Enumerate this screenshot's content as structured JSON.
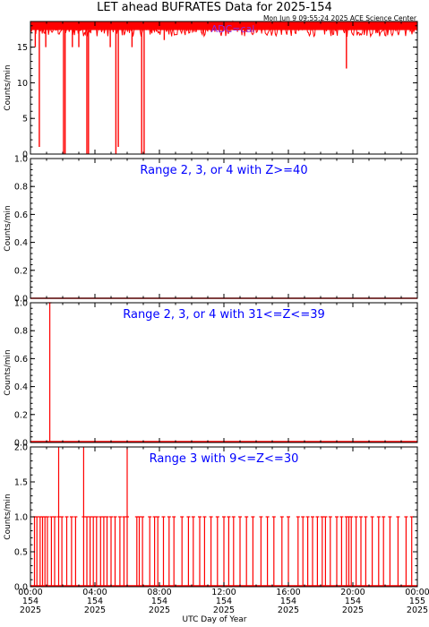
{
  "page": {
    "title": "LET ahead BUFRATES Data for 2025-154",
    "subtitle": "Mon Jun  9 09:55:24 2025 ACE Science Center",
    "xlabel": "UTC Day of Year"
  },
  "colors": {
    "data": "#ff0000",
    "panel_title": "#0000ff",
    "annotation": "#8a2be2",
    "axes": "#000000"
  },
  "chart_data": [
    {
      "type": "line",
      "title": "",
      "annotation": "ADC=cal",
      "xlabel": "",
      "ylabel": "Counts/min",
      "xlim": [
        0,
        24
      ],
      "ylim": [
        0,
        18.6
      ],
      "yticks": [
        0,
        5,
        10,
        15
      ],
      "ytick_labels": [
        "0",
        "5",
        "10",
        "15"
      ],
      "baseline": 18.0,
      "noise_band": [
        16.5,
        18.6
      ],
      "dips": [
        [
          0.3,
          15
        ],
        [
          0.55,
          1
        ],
        [
          2.05,
          0
        ],
        [
          2.15,
          0
        ],
        [
          3.5,
          0
        ],
        [
          3.6,
          0
        ],
        [
          5.3,
          0
        ],
        [
          5.45,
          1
        ],
        [
          6.9,
          0
        ],
        [
          7.05,
          0
        ],
        [
          0.95,
          15
        ],
        [
          2.6,
          15
        ],
        [
          3.0,
          15
        ],
        [
          4.95,
          15
        ],
        [
          6.3,
          15
        ],
        [
          8.3,
          16
        ],
        [
          19.6,
          12
        ]
      ],
      "spikes": [
        [
          1.1,
          19
        ],
        [
          2.6,
          19
        ],
        [
          4.2,
          19
        ],
        [
          5.8,
          19
        ],
        [
          9.8,
          19
        ],
        [
          14.5,
          19
        ],
        [
          17.2,
          19
        ],
        [
          21.3,
          19
        ]
      ]
    },
    {
      "type": "line",
      "title": "Range 2, 3, or 4 with Z>=40",
      "xlabel": "",
      "ylabel": "Counts/min",
      "xlim": [
        0,
        24
      ],
      "ylim": [
        0,
        1.0
      ],
      "yticks": [
        0,
        0.2,
        0.4,
        0.6,
        0.8,
        1.0
      ],
      "ytick_labels": [
        "0.0",
        "0.2",
        "0.4",
        "0.6",
        "0.8",
        "1.0"
      ],
      "x": [
        0,
        24
      ],
      "y": [
        0,
        0
      ]
    },
    {
      "type": "line",
      "title": "Range 2, 3, or 4 with 31<=Z<=39",
      "xlabel": "",
      "ylabel": "Counts/min",
      "xlim": [
        0,
        24
      ],
      "ylim": [
        0,
        1.0
      ],
      "yticks": [
        0,
        0.2,
        0.4,
        0.6,
        0.8,
        1.0
      ],
      "ytick_labels": [
        "0.0",
        "0.2",
        "0.4",
        "0.6",
        "0.8",
        "1.0"
      ],
      "events": [
        [
          1.2,
          1
        ]
      ]
    },
    {
      "type": "line",
      "title": "Range 3 with 9<=Z<=30",
      "xlabel": "UTC Day of Year",
      "ylabel": "Counts/min",
      "xlim": [
        0,
        24
      ],
      "ylim": [
        0,
        2.0
      ],
      "yticks": [
        0,
        0.5,
        1.0,
        1.5,
        2.0
      ],
      "ytick_labels": [
        "0.0",
        "0.5",
        "1.0",
        "1.5",
        "2.0"
      ],
      "xtick_labels": [
        {
          "time": "00:00",
          "doy": "154",
          "year": "2025"
        },
        {
          "time": "04:00",
          "doy": "154",
          "year": "2025"
        },
        {
          "time": "08:00",
          "doy": "154",
          "year": "2025"
        },
        {
          "time": "12:00",
          "doy": "154",
          "year": "2025"
        },
        {
          "time": "16:00",
          "doy": "154",
          "year": "2025"
        },
        {
          "time": "20:00",
          "doy": "154",
          "year": "2025"
        },
        {
          "time": "00:00",
          "doy": "155",
          "year": "2025"
        }
      ],
      "events": [
        [
          0.25,
          1
        ],
        [
          0.4,
          1
        ],
        [
          0.6,
          1
        ],
        [
          0.75,
          1
        ],
        [
          0.9,
          1
        ],
        [
          1.05,
          1
        ],
        [
          1.3,
          1
        ],
        [
          1.5,
          1
        ],
        [
          1.75,
          2
        ],
        [
          1.95,
          1
        ],
        [
          2.25,
          1
        ],
        [
          2.55,
          1
        ],
        [
          2.8,
          1
        ],
        [
          3.3,
          2
        ],
        [
          3.5,
          1
        ],
        [
          3.7,
          1
        ],
        [
          3.9,
          1
        ],
        [
          4.1,
          1
        ],
        [
          4.35,
          1
        ],
        [
          4.55,
          1
        ],
        [
          4.75,
          1
        ],
        [
          5.0,
          1
        ],
        [
          5.25,
          1
        ],
        [
          5.55,
          1
        ],
        [
          5.8,
          1
        ],
        [
          6.0,
          2
        ],
        [
          6.6,
          1
        ],
        [
          6.75,
          1
        ],
        [
          6.95,
          1
        ],
        [
          7.4,
          1
        ],
        [
          7.7,
          1
        ],
        [
          7.9,
          1
        ],
        [
          8.25,
          1
        ],
        [
          8.6,
          1
        ],
        [
          8.9,
          1
        ],
        [
          9.4,
          1
        ],
        [
          9.8,
          1
        ],
        [
          10.1,
          1
        ],
        [
          10.5,
          1
        ],
        [
          10.8,
          1
        ],
        [
          11.2,
          1
        ],
        [
          11.6,
          1
        ],
        [
          12.0,
          1
        ],
        [
          12.3,
          1
        ],
        [
          12.6,
          1
        ],
        [
          13.0,
          1
        ],
        [
          13.4,
          1
        ],
        [
          13.8,
          1
        ],
        [
          14.3,
          1
        ],
        [
          14.7,
          1
        ],
        [
          15.1,
          1
        ],
        [
          15.6,
          1
        ],
        [
          16.0,
          1
        ],
        [
          16.6,
          1
        ],
        [
          16.9,
          1
        ],
        [
          17.2,
          1
        ],
        [
          17.5,
          1
        ],
        [
          17.8,
          1
        ],
        [
          18.1,
          1
        ],
        [
          18.3,
          1
        ],
        [
          18.6,
          1
        ],
        [
          19.0,
          1
        ],
        [
          19.3,
          1
        ],
        [
          19.6,
          1
        ],
        [
          19.75,
          1
        ],
        [
          19.9,
          1
        ],
        [
          20.2,
          1
        ],
        [
          20.5,
          1
        ],
        [
          20.8,
          1
        ],
        [
          21.2,
          1
        ],
        [
          21.6,
          1
        ],
        [
          21.9,
          1
        ],
        [
          22.3,
          1
        ],
        [
          22.8,
          1
        ],
        [
          23.3,
          1
        ],
        [
          23.65,
          1
        ]
      ]
    }
  ]
}
